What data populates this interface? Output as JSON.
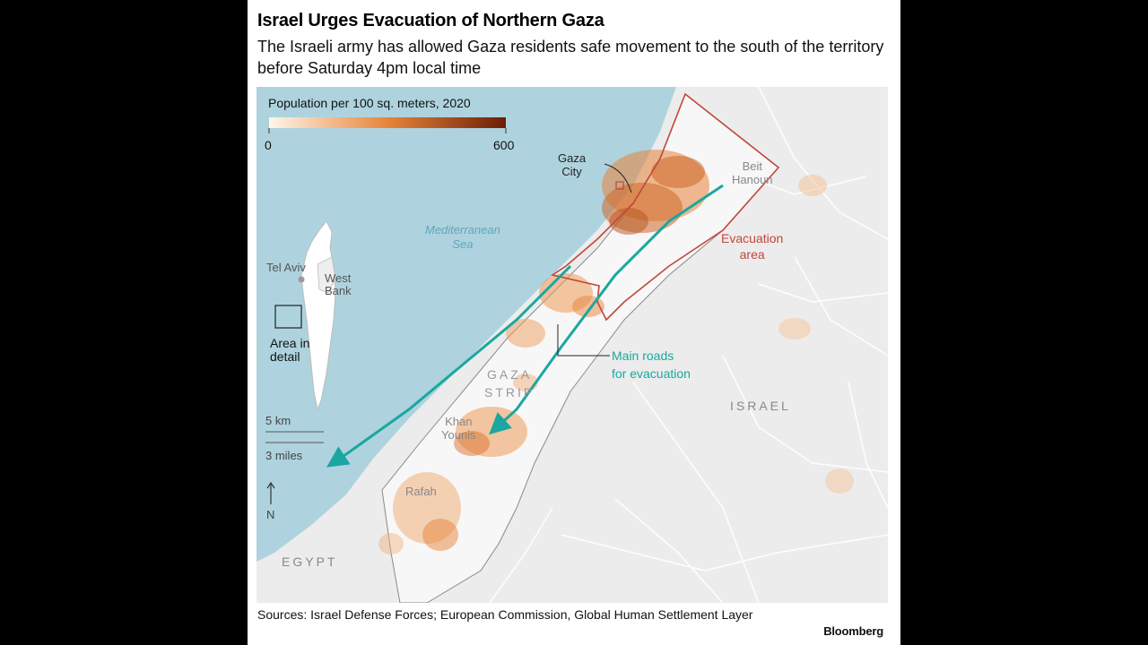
{
  "header": {
    "title": "Israel Urges Evacuation of Northern Gaza",
    "subtitle": "The Israeli army has allowed Gaza residents safe movement to the south of the territory before Saturday 4pm local time"
  },
  "legend": {
    "title": "Population per 100 sq. meters, 2020",
    "min": "0",
    "max": "600",
    "color_low": "#fff6ea",
    "color_mid": "#e8843a",
    "color_high": "#6b1e08"
  },
  "labels": {
    "gaza_city": [
      "Gaza",
      "City"
    ],
    "beit_hanoun": [
      "Beit",
      "Hanoun"
    ],
    "evacuation_area": [
      "Evacuation",
      "area"
    ],
    "sea": [
      "Mediterranean",
      "Sea"
    ],
    "main_roads": [
      "Main roads",
      "for evacuation"
    ],
    "gaza_strip": [
      "GAZA",
      "STRIP"
    ],
    "khan_younis": [
      "Khan",
      "Younis"
    ],
    "rafah": "Rafah",
    "israel": "ISRAEL",
    "egypt": "EGYPT"
  },
  "inset": {
    "tel_aviv": "Tel Aviv",
    "west_bank": [
      "West",
      "Bank"
    ],
    "area_in_detail": [
      "Area in",
      "detail"
    ]
  },
  "scale": {
    "km": "5 km",
    "miles": "3 miles",
    "north": "N"
  },
  "footer": {
    "sources": "Sources: Israel Defense Forces; European Commission, Global Human Settlement Layer",
    "brand": "Bloomberg"
  },
  "colors": {
    "sea": "#aed3de",
    "land": "#ececec",
    "gaza": "#f7f7f7",
    "evacuation": "#c0473a",
    "route": "#1aa7a1"
  }
}
